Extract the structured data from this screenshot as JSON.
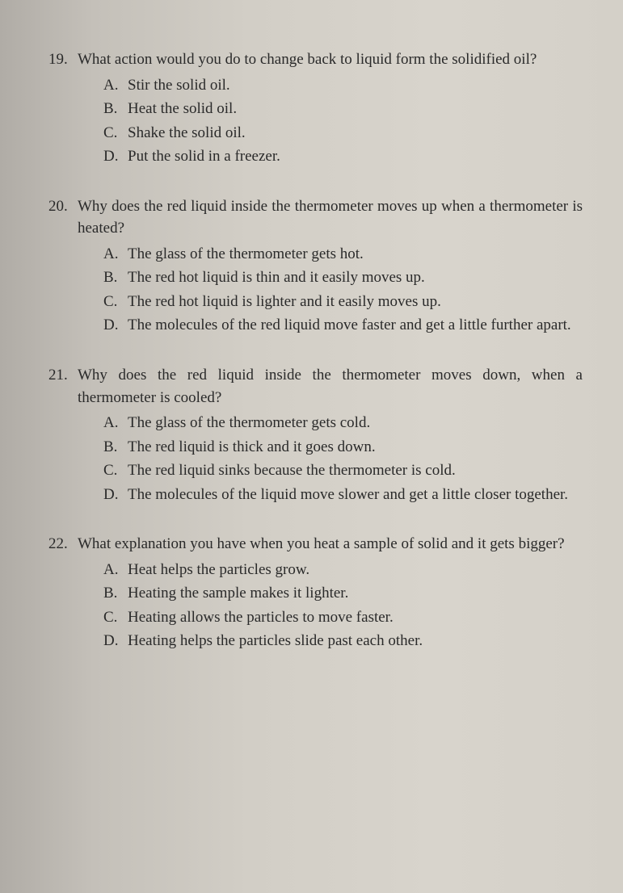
{
  "questions": [
    {
      "number": "19.",
      "text": "What action would you do to change back to liquid form the solidified oil?",
      "options": [
        {
          "letter": "A.",
          "text": "Stir the solid oil."
        },
        {
          "letter": "B.",
          "text": "Heat the solid oil."
        },
        {
          "letter": "C.",
          "text": "Shake the solid oil."
        },
        {
          "letter": "D.",
          "text": "Put the solid in a freezer."
        }
      ]
    },
    {
      "number": "20.",
      "text": "Why does the red liquid inside the thermometer moves up when a thermometer is heated?",
      "options": [
        {
          "letter": "A.",
          "text": "The glass of the thermometer gets hot."
        },
        {
          "letter": "B.",
          "text": "The red hot liquid is thin and it easily moves up."
        },
        {
          "letter": "C.",
          "text": "The red hot liquid is lighter and it easily moves up."
        },
        {
          "letter": "D.",
          "text": "The molecules of the red liquid move faster and get a little further apart."
        }
      ]
    },
    {
      "number": "21.",
      "text": "Why does the red liquid inside the thermometer moves down, when a thermometer is cooled?",
      "options": [
        {
          "letter": "A.",
          "text": "The glass of the thermometer gets cold."
        },
        {
          "letter": "B.",
          "text": "The red liquid is thick and it goes down."
        },
        {
          "letter": "C.",
          "text": "The red liquid sinks because the thermometer is cold."
        },
        {
          "letter": "D.",
          "text": "The molecules of the liquid move slower and get a little closer together."
        }
      ]
    },
    {
      "number": "22.",
      "text": "What explanation you have when you heat a sample of solid and it gets bigger?",
      "options": [
        {
          "letter": "A.",
          "text": "Heat helps the particles grow."
        },
        {
          "letter": "B.",
          "text": "Heating the sample makes it lighter."
        },
        {
          "letter": "C.",
          "text": "Heating allows the particles to move faster."
        },
        {
          "letter": "D.",
          "text": "Heating helps the particles slide past each other."
        }
      ]
    }
  ],
  "style": {
    "text_color": "#2a2a2a",
    "font_family": "Georgia, 'Times New Roman', serif",
    "font_size_pt": 14,
    "justify_questions": [
      1,
      2
    ]
  }
}
